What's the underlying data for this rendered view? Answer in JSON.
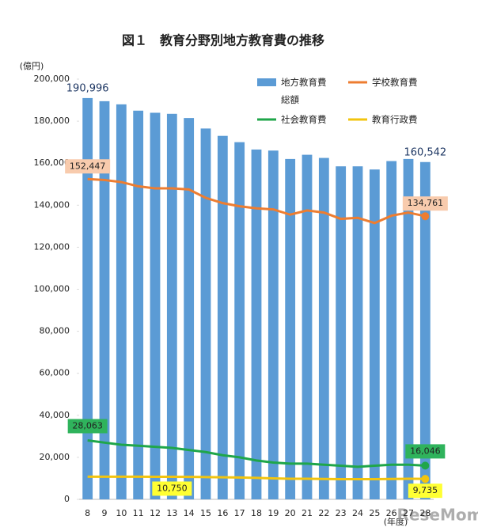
{
  "chart_data": {
    "type": "bar_line",
    "title": "図１　教育分野別地方教育費の推移",
    "y_unit": "(億円)",
    "x_unit": "(年度)",
    "watermark": "ReseMom",
    "categories": [
      "8",
      "9",
      "10",
      "11",
      "12",
      "13",
      "14",
      "15",
      "16",
      "17",
      "18",
      "19",
      "20",
      "21",
      "22",
      "23",
      "24",
      "25",
      "26",
      "27",
      "28"
    ],
    "ylim": [
      0,
      200000
    ],
    "yticks": [
      0,
      {
        "value": 20000,
        "label": "20,000"
      },
      {
        "value": 40000,
        "label": "40,000"
      },
      {
        "value": 60000,
        "label": "60,000"
      },
      {
        "value": 80000,
        "label": "80,000"
      },
      {
        "value": 100000,
        "label": "100,000"
      },
      {
        "value": 120000,
        "label": "120,000"
      },
      {
        "value": 140000,
        "label": "140,000"
      },
      {
        "value": 160000,
        "label": "160,000"
      },
      {
        "value": 180000,
        "label": "180,000"
      },
      {
        "value": 200000,
        "label": "200,000"
      }
    ],
    "series": [
      {
        "name": "地方教育費総額",
        "kind": "bar",
        "color": "#5b9bd5",
        "values": [
          190996,
          189500,
          188000,
          185000,
          184000,
          183500,
          181500,
          176500,
          173000,
          170000,
          166500,
          166000,
          162000,
          164000,
          162500,
          158500,
          158500,
          157000,
          161000,
          162000,
          160542
        ],
        "value_labels": [
          "190,996",
          null,
          null,
          null,
          null,
          null,
          null,
          null,
          null,
          null,
          null,
          null,
          null,
          null,
          null,
          null,
          null,
          null,
          null,
          null,
          "160,542"
        ]
      },
      {
        "name": "学校教育費",
        "kind": "line",
        "color": "#ed7d31",
        "label_bg": "#f8cbad",
        "values": [
          152447,
          152000,
          151000,
          149000,
          148000,
          148000,
          147500,
          143500,
          141000,
          139500,
          138500,
          138000,
          135500,
          137500,
          136500,
          133500,
          134000,
          131500,
          135000,
          136500,
          134761
        ],
        "value_labels": [
          "152,447",
          null,
          null,
          null,
          null,
          null,
          null,
          null,
          null,
          null,
          null,
          null,
          null,
          null,
          null,
          null,
          null,
          null,
          null,
          null,
          "134,761"
        ]
      },
      {
        "name": "社会教育費",
        "kind": "line",
        "color": "#1fa64a",
        "label_bg": "#2fb35c",
        "values": [
          28063,
          27000,
          26000,
          25500,
          25000,
          24500,
          23500,
          22500,
          21000,
          20000,
          18500,
          17500,
          17000,
          17000,
          16500,
          16000,
          15500,
          16000,
          16500,
          16500,
          16046
        ],
        "value_labels": [
          "28,063",
          null,
          null,
          null,
          null,
          null,
          null,
          null,
          null,
          null,
          null,
          null,
          null,
          null,
          null,
          null,
          null,
          null,
          null,
          null,
          "16,046"
        ]
      },
      {
        "name": "教育行政費",
        "kind": "line",
        "color": "#f2c40f",
        "label_bg": "#ffff33",
        "values": [
          10800,
          10800,
          10800,
          10800,
          10750,
          10750,
          10700,
          10600,
          10500,
          10400,
          10200,
          10000,
          9800,
          9800,
          9700,
          9600,
          9600,
          9600,
          9700,
          9800,
          9735
        ],
        "value_labels": [
          null,
          null,
          null,
          null,
          null,
          "10,750",
          null,
          null,
          null,
          null,
          null,
          null,
          null,
          null,
          null,
          null,
          null,
          null,
          null,
          null,
          "9,735"
        ]
      }
    ]
  }
}
